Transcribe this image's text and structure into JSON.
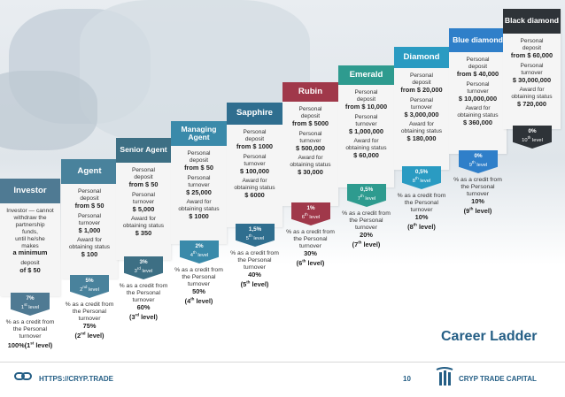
{
  "title": "Career Ladder",
  "footer": {
    "url": "HTTPS://CRYP.TRADE",
    "page": "10",
    "brand": "CRYP TRADE CAPITAL"
  },
  "levels": [
    {
      "name": "Investor",
      "color": "#4f7a93",
      "lines": [
        "Investor — cannot",
        "withdraw the",
        "partnership",
        "funds,",
        "until he/she",
        "makes"
      ],
      "bold": [
        "a minimum"
      ],
      "lines2": [
        "deposit"
      ],
      "bold2": [
        "of $ 50"
      ],
      "badge_pct": "7%",
      "badge_level": "1st level",
      "credit": [
        "% as a credit from",
        "the Personal",
        "turnover"
      ],
      "credit_bold": "100%(1st level)"
    },
    {
      "name": "Agent",
      "color": "#49829c",
      "lines": [
        "Personal",
        "deposit"
      ],
      "bold": [
        "from $ 50"
      ],
      "lines2": [
        "Personal",
        "turnover"
      ],
      "bold2": [
        "$ 1,000"
      ],
      "lines3": [
        "Award for",
        "obtaining status"
      ],
      "bold3": [
        "$ 100"
      ],
      "badge_pct": "5%",
      "badge_level": "2nd level",
      "credit": [
        "% as a credit from",
        "the Personal",
        "turnover"
      ],
      "credit_bold": "75%",
      "credit_level": "(2nd level)"
    },
    {
      "name": "Senior Agent",
      "color": "#3d6f84",
      "lines": [
        "Personal",
        "deposit"
      ],
      "bold": [
        "from $ 50"
      ],
      "lines2": [
        "Personal",
        "turnover"
      ],
      "bold2": [
        "$ 5,000"
      ],
      "lines3": [
        "Award for",
        "obtaining status"
      ],
      "bold3": [
        "$ 350"
      ],
      "badge_pct": "3%",
      "badge_level": "3rd level",
      "credit": [
        "% as a credit from",
        "the Personal",
        "turnover"
      ],
      "credit_bold": "60%",
      "credit_level": "(3rd level)"
    },
    {
      "name": "Managing Agent",
      "color": "#3a8aaa",
      "lines": [
        "Personal",
        "deposit"
      ],
      "bold": [
        "from $ 50"
      ],
      "lines2": [
        "Personal",
        "turnover"
      ],
      "bold2": [
        "$ 25,000"
      ],
      "lines3": [
        "Award for",
        "obtaining status"
      ],
      "bold3": [
        "$ 1000"
      ],
      "badge_pct": "2%",
      "badge_level": "4th level",
      "credit": [
        "% as a credit from",
        "the Personal",
        "turnover"
      ],
      "credit_bold": "50%",
      "credit_level": "(4th level)"
    },
    {
      "name": "Sapphire",
      "color": "#2f6e8f",
      "lines": [
        "Personal",
        "deposit"
      ],
      "bold": [
        "from $ 1000"
      ],
      "lines2": [
        "Personal",
        "turnover"
      ],
      "bold2": [
        "$ 100,000"
      ],
      "lines3": [
        "Award for",
        "obtaining status"
      ],
      "bold3": [
        "$ 6000"
      ],
      "badge_pct": "1,5%",
      "badge_level": "5th level",
      "credit": [
        "% as a credit from",
        "the Personal",
        "turnover"
      ],
      "credit_bold": "40%",
      "credit_level": "(5th level)"
    },
    {
      "name": "Rubin",
      "color": "#a0384a",
      "lines": [
        "Personal",
        "deposit"
      ],
      "bold": [
        "from $ 5000"
      ],
      "lines2": [
        "Personal",
        "turnover"
      ],
      "bold2": [
        "$ 500,000"
      ],
      "lines3": [
        "Award for",
        "obtaining status"
      ],
      "bold3": [
        "$ 30,000"
      ],
      "badge_pct": "1%",
      "badge_level": "6th level",
      "credit": [
        "% as a credit from",
        "the Personal",
        "turnover"
      ],
      "credit_bold": "30%",
      "credit_level": "(6th level)"
    },
    {
      "name": "Emerald",
      "color": "#2e9b8f",
      "lines": [
        "Personal",
        "deposit"
      ],
      "bold": [
        "from $ 10,000"
      ],
      "lines2": [
        "Personal",
        "turnover"
      ],
      "bold2": [
        "$ 1,000,000"
      ],
      "lines3": [
        "Award for",
        "obtaining status"
      ],
      "bold3": [
        "$ 60,000"
      ],
      "badge_pct": "0,5%",
      "badge_level": "7th level",
      "credit": [
        "% as a credit from",
        "the Personal",
        "turnover"
      ],
      "credit_bold": "20%",
      "credit_level": "(7th level)"
    },
    {
      "name": "Diamond",
      "color": "#2a9bc2",
      "lines": [
        "Personal",
        "deposit"
      ],
      "bold": [
        "from $ 20,000"
      ],
      "lines2": [
        "Personal",
        "turnover"
      ],
      "bold2": [
        "$ 3,000,000"
      ],
      "lines3": [
        "Award for",
        "obtaining status"
      ],
      "bold3": [
        "$ 180,000"
      ],
      "badge_pct": "0,5%",
      "badge_level": "8th level",
      "credit": [
        "% as a credit from",
        "the Personal",
        "turnover"
      ],
      "credit_bold": "10%",
      "credit_level": "(8th level)"
    },
    {
      "name": "Blue diamond",
      "color": "#2f7fc9",
      "lines": [
        "Personal",
        "deposit"
      ],
      "bold": [
        "from $ 40,000"
      ],
      "lines2": [
        "Personal",
        "turnover"
      ],
      "bold2": [
        "$ 10,000,000"
      ],
      "lines3": [
        "Award for",
        "obtaining status"
      ],
      "bold3": [
        "$ 360,000"
      ],
      "badge_pct": "0%",
      "badge_level": "9th level",
      "credit": [
        "% as a credit from",
        "the Personal",
        "turnover"
      ],
      "credit_bold": "10%",
      "credit_level": "(9th level)"
    },
    {
      "name": "Black diamond",
      "color": "#2e3338",
      "lines": [
        "Personal",
        "deposit"
      ],
      "bold": [
        "from $ 60,000"
      ],
      "lines2": [
        "Personal",
        "turnover"
      ],
      "bold2": [
        "$ 30,000,000"
      ],
      "lines3": [
        "Award for",
        "obtaining status"
      ],
      "bold3": [
        "$ 720,000"
      ],
      "badge_pct": "0%",
      "badge_level": "10th level"
    }
  ]
}
